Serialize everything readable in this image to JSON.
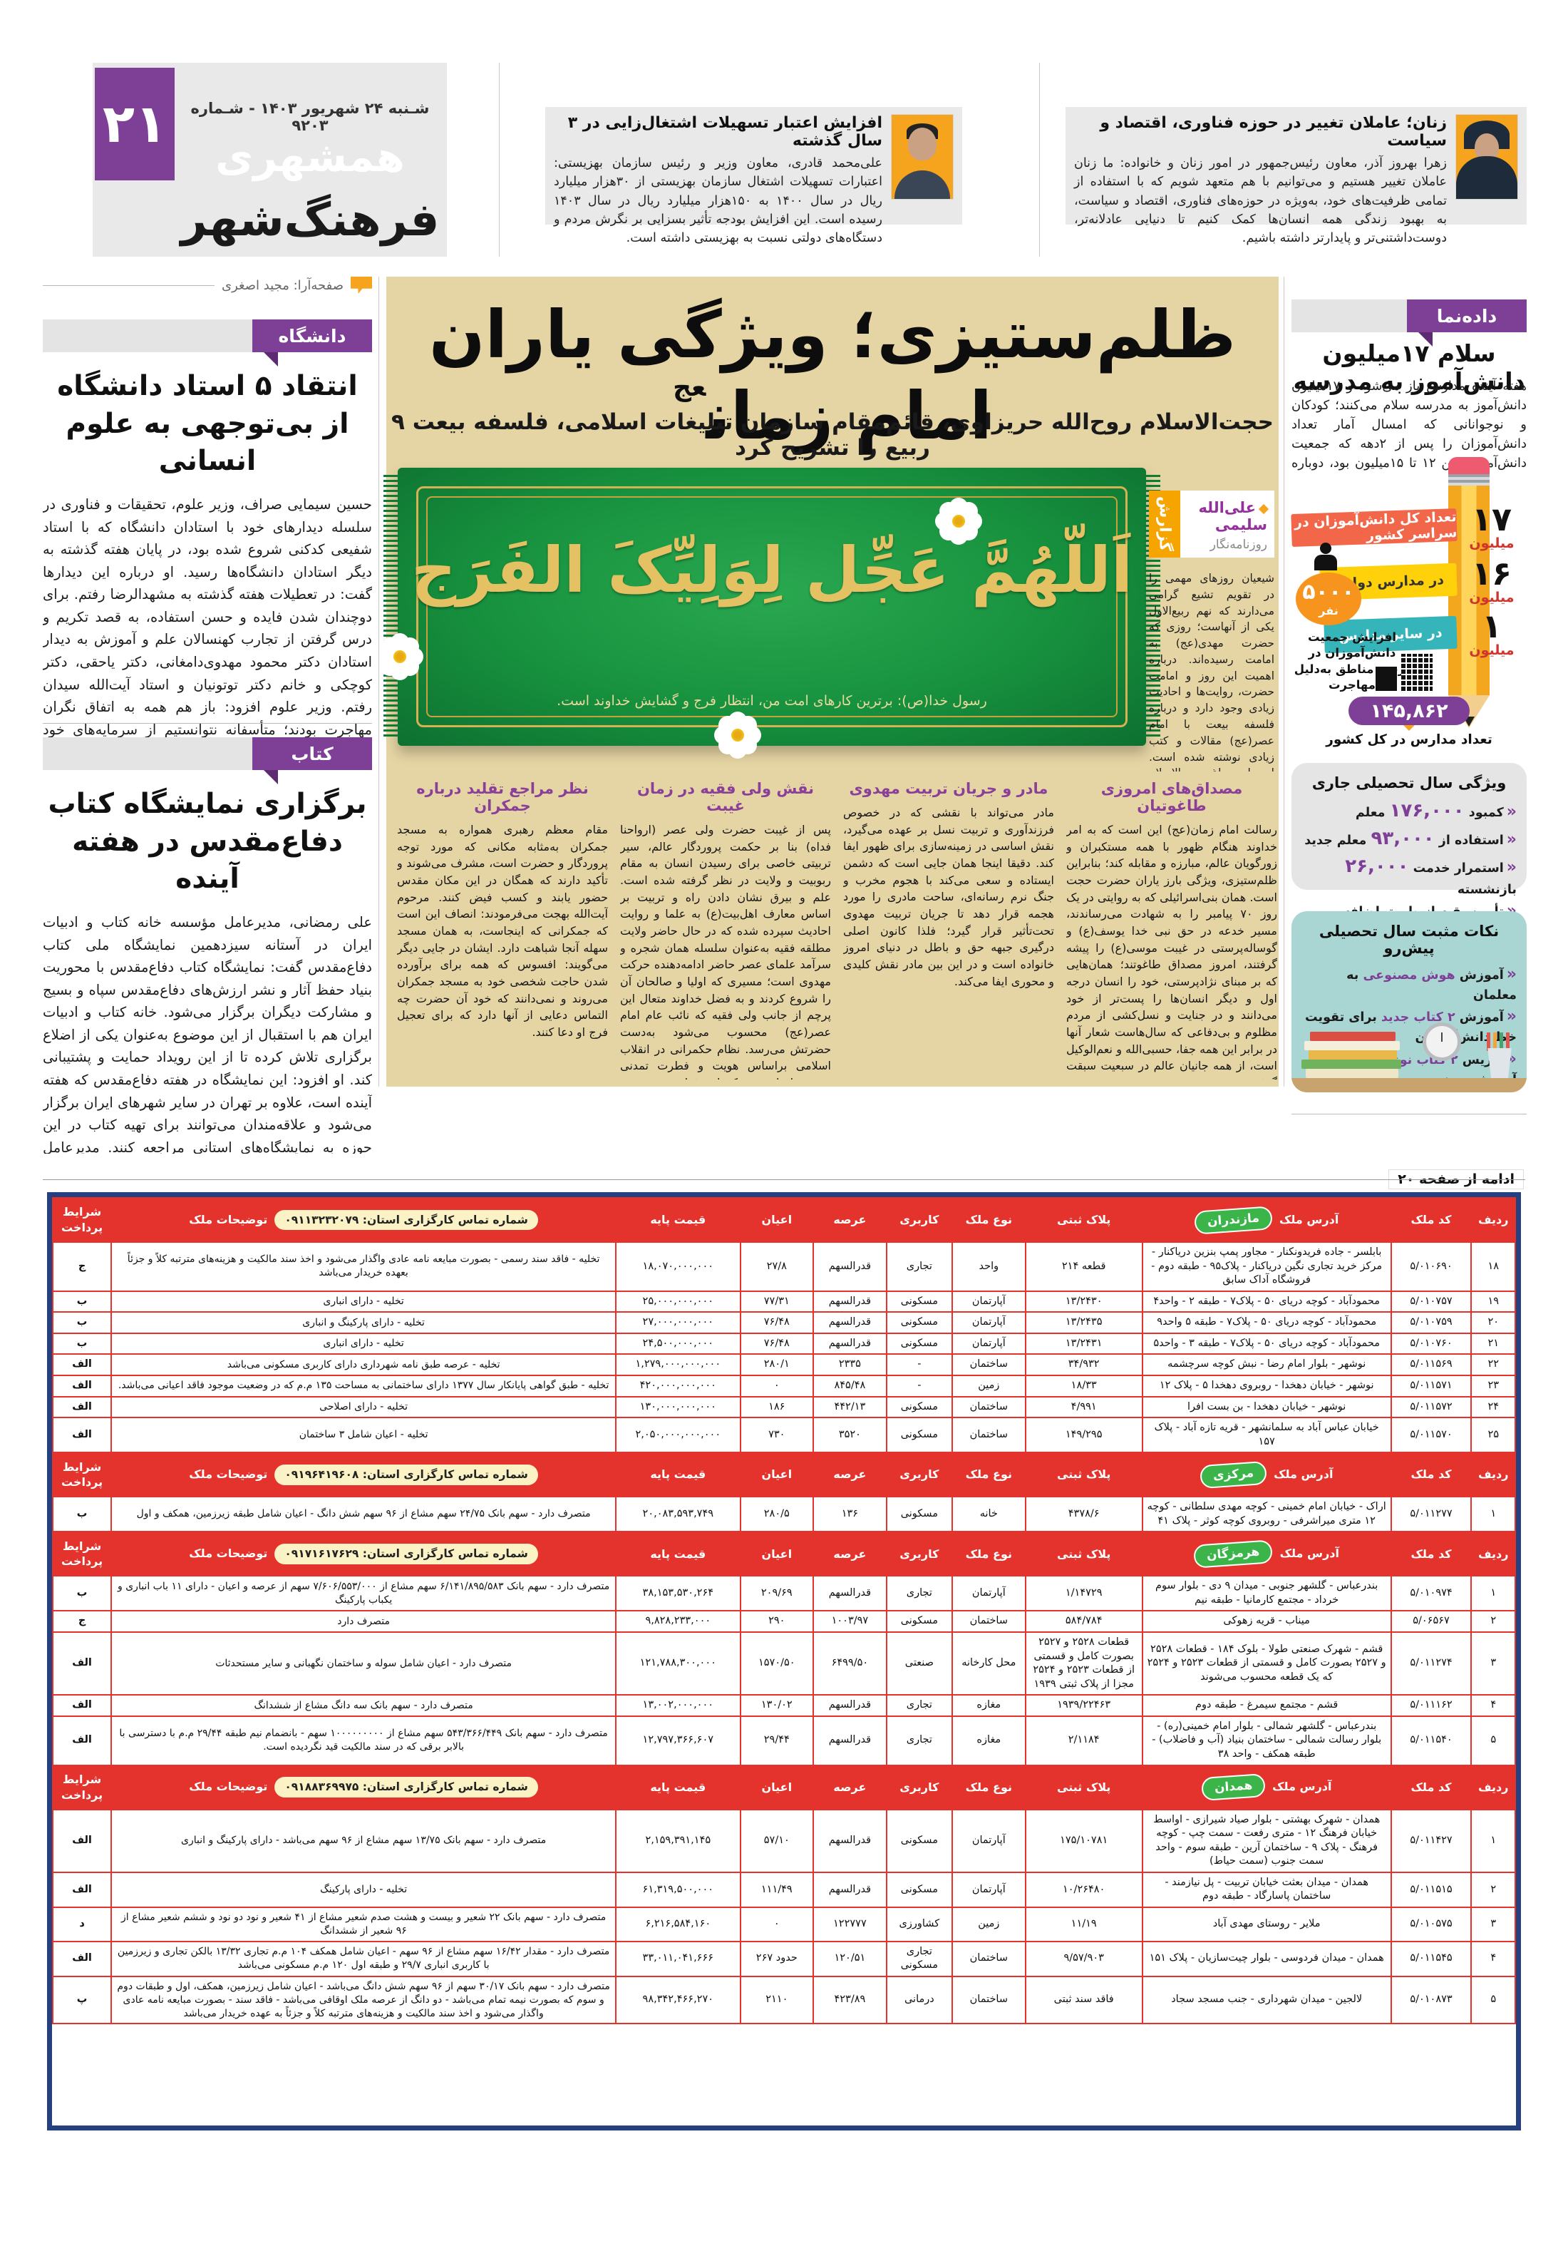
{
  "page": {
    "number": "۲۱",
    "date_line": "شـنبه ۲۴ شهریور ۱۴۰۳ - شـماره ۹۲۰۳",
    "brand": "همشهری",
    "section_logo": "فرهنگ‌شهر",
    "designer_credit": "صفحه‌آرا: مجید اصغری"
  },
  "top_articles": [
    {
      "title": "افزایش اعتبار تسهیلات اشتغال‌زایی در ۳ سال گذشته",
      "body": "علی‌محمد قادری، معاون وزیر و رئیس سازمان بهزیستی: اعتبارات تسهیلات اشتغال سازمان بهزیستی از ۳۰هزار میلیارد ریال در سال ۱۴۰۰ به ۱۵۰هزار میلیارد ریال در سال ۱۴۰۳ رسیده است. این افزایش بودجه تأثیر بسزایی بر نگرش مردم و دستگاه‌های دولتی نسبت به بهزیستی داشته است."
    },
    {
      "title": "زنان؛ عاملان تغییر در حوزه فناوری، اقتصاد و سیاست",
      "body": "زهرا بهروز آذر، معاون رئیس‌جمهور در امور زنان و خانواده: ما زنان عاملان تغییر هستیم و می‌توانیم با هم متعهد شویم که با استفاده از تمامی ظرفیت‌های خود، به‌ویژه در حوزه‌های فناوری، اقتصاد و سیاست، به بهبود زندگی همه انسان‌ها کمک کنیم تا دنیایی عادلانه‌تر، دوست‌داشتنی‌تر و پایدارتر داشته باشیم."
    }
  ],
  "left_articles": [
    {
      "tab": "دانشگاه",
      "title_l1": "انتقاد ۵ استاد دانشگاه",
      "title_l2": "از بی‌توجهی به علوم انسانی",
      "body": "حسین سیمایی صراف، وزیر علوم، تحقیقات و فناوری در سلسله دیدارهای خود با استادان دانشگاه که با استاد شفیعی کدکنی شروع شده بود، در پایان هفته گذشته به دیگر استادان دانشگاه‌ها رسید. او درباره این دیدارها گفت: در تعطیلات هفته گذشته به مشهدالرضا رفتم. برای دوچندان شدن فایده و حسن استفاده، به قصد تکریم و درس گرفتن از تجارب کهنسالان علم و آموزش به دیدار استادان دکتر محمود مهدوی‌دامغانی، دکتر یاحقی، دکتر کوچکی و خانم دکتر توتونیان و استاد آیت‌الله سیدان رفتم. وزیر علوم افزود: باز هم همه به اتفاق نگران مهاجرت بودند؛ متأسفانه نتوانستیم از سرمایه‌های خود مراقبت کنیم؛ دکتر مهدوی از روش مدیریت دانشکده و دانشگاه در دوران پیش از انقلاب گفت. خانم دکتر توتونیان درباره حفظ منابع انسانی گفت؛ با دکتر یاحقی و دکتر کوچکی درباره کم‌توجهی به علوم انسانی و علوم پایه و علل ضعف دانشگاه گفتیم و از راهکارها بحث کردیم."
    },
    {
      "tab": "کتاب",
      "title_l1": "برگزاری نمایشگاه کتاب",
      "title_l2": "دفاع‌مقدس در هفته آینده",
      "body": "علی رمضانی، مدیرعامل مؤسسه خانه کتاب و ادبیات ایران در آستانه سیزدهمین نمایشگاه ملی کتاب دفاع‌مقدس گفت: نمایشگاه کتاب دفاع‌مقدس با محوریت بنیاد حفظ آثار و نشر ارزش‌های دفاع‌مقدس سپاه و بسیج و مشارکت دیگران برگزار می‌شود. خانه کتاب و ادبیات ایران هم با استقبال از این موضوع به‌عنوان یکی از اضلاع برگزاری تلاش کرده تا از این رویداد حمایت و پشتیبانی کند. او افزود: این نمایشگاه در هفته دفاع‌مقدس که هفته آینده است، علاوه بر تهران در سایر شهرهای ایران برگزار می‌شود و علاقه‌مندان می‌توانند برای تهیه کتاب در این حوزه به نمایشگاه‌های استانی مراجعه کنند. مدیرعامل مؤسسه خانه کتاب و ادبیات ایران گفت: تمام کتاب‌های حوزه دفاع مقدس برای آشنایی بیشتر مردم با ۸سال جنگ تحمیلی در این نمایشگاه‌ها ارائه می‌شود و تلاش شده آثار جدید نیز در این حوزه منتشر و در اختیار مخاطبان قرار داده شود."
    }
  ],
  "main": {
    "headline": "ظلم‌ستیزی؛ ویژگی یاران امام زمان",
    "headline_sup": "عج",
    "subtitle": "حجت‌الاسلام روح‌الله حریزاوی، قائم‌مقام سازمان تبلیغات اسلامی، فلسفه بیعت ۹ ربیع را تشریح کرد",
    "report_tab": "گزارش",
    "byline_name": "علی‌الله سلیمی",
    "byline_role": "روزنامه‌نگار",
    "rug_calligraphy": "اَللّهُمَّ عَجِّل لِوَلِیِّکَ الفَرَج",
    "rug_caption": "رسول خدا(ص): برترین کارهای امت من، انتظار فرج و گشایش خداوند است.",
    "lead": "شیعیان روزهای مهمی را در تقویم تشیع گرامی می‌دارند که نهم ربیع‌الاول یکی از آنهاست؛ روزی که حضرت مهدی(عج) به امامت رسیده‌اند. درباره اهمیت این روز و امامت حضرت، روایت‌ها و احادیث زیادی وجود دارد و درباره فلسفه بیعت با امام عصر(عج) مقالات و کتب زیادی نوشته شده است. این بار سراغ حجت‌الاسلام روح‌الله حریزاوی، قائم‌مقام سازمان تبلیغات اسلامی رفتیم تا درباره چند موضوع مهم یعنی وظیفه یاران حضرت در برابر ظلم ظالمان عصر، نقش خانواده به‌ویژه مادران در زمان غیبت و اهمیت مسجد جمکران گفت‌وگو کنیم که چکیده آن را در زیر می‌خوانید.",
    "columns": [
      {
        "heading": "مصداق‌های امروزی طاغوتیان",
        "body": "رسالت امام زمان(عج) این است که به امر خداوند هنگام ظهور با همه مستکبران و زورگویان عالم، مبارزه و مقابله کند؛ بنابراین ظلم‌ستیزی، ویژگی بارز یاران حضرت حجت است. همان بنی‌اسرائیلی که به روایتی در یک روز ۷۰ پیامبر را به شهادت می‌رساندند، مسیر خدعه در حق نبی خدا یوسف(ع) و گوساله‌پرستی در غیبت موسی(ع) را پیشه گرفتند، امروز مصداق طاغوتند؛ همان‌هایی که بر مبنای نژادپرستی، خود را انسان درجه اول و دیگر انسان‌ها را پست‌تر از خود می‌دانند و در جنایت و نسل‌کشی از مردم مظلوم و بی‌دفاعی که سال‌هاست شعار آنها در برابر این همه جفا، حسبی‌الله و نعم‌الوکیل است، از همه جانیان عالم در سبعیت سبقت گرفتند."
      },
      {
        "heading": "مادر و جریان تربیت مهدوی",
        "body": "مادر می‌تواند با نقشی که در خصوص فرزندآوری و تربیت نسل بر عهده می‌گیرد، نقش اساسی در زمینه‌سازی برای ظهور ایفا کند. دقیقا اینجا همان جایی است که دشمن ایستاده و سعی می‌کند با هجوم مخرب و جنگ نرم رسانه‌ای، ساحت مادری را مورد هجمه قرار دهد تا جریان تربیت مهدوی تحت‌تأثیر قرار گیرد؛ فلذا کانون اصلی درگیری جبهه حق و باطل در دنیای امروز خانواده است و در این بین مادر نقش کلیدی و محوری ایفا می‌کند."
      },
      {
        "heading": "نقش ولی فقیه در زمان غیبت",
        "body": "پس از غیبت حضرت ولی عصر (ارواحنا فداه) بنا بر حکمت پروردگار عالم، سیر تربیتی خاصی برای رسیدن انسان به مقام ربوبیت و ولایت در نظر گرفته شده است. علم و بیرق نشان دادن راه و تربیت بر اساس معارف اهل‌بیت(ع) به علما و روایت احادیث سپرده شده که در حال حاضر ولایت مطلقه فقیه به‌عنوان سلسله همان شجره و سرآمد علمای عصر حاضر ادامه‌دهنده حرکت مهدوی است؛ مسیری که اولیا و صالحان آن را شروع کردند و به فضل خداوند متعال این پرچم از جانب ولی فقیه که نائب عام امام عصر(عج) محسوب می‌شود به‌دست حضرتش می‌رسد. نظام حکمرانی در انقلاب اسلامی براساس هویت و فطرت تمدنی مهدوی ایجاد شده که این فطرت مبتنی بر تمایل انسان به امر متعالی است؛ چیزی که سرآمد آرمان جامعه یکپارچه مهدوی است. اینجا وجه تمایز تمدن مهدوی و در سلسله آن جمهوری اسلامی با سایر تمدن‌ها مشخص می‌شود."
      },
      {
        "heading": "نظر مراجع تقلید درباره جمکران",
        "body": "مقام معظم رهبری همواره به مسجد جمکران به‌مثابه مکانی که مورد توجه پروردگار و حضرت است، مشرف می‌شوند و تأکید دارند که همگان در این مکان مقدس حضور یابند و کسب فیض کنند. مرحوم آیت‌الله بهجت می‌فرمودند: انصاف این است که جمکرانی که اینجاست، به همان مسجد سهله آنجا شباهت دارد. ایشان در جایی دیگر می‌گویند: افسوس که همه برای برآورده شدن حاجت شخصی خود به مسجد جمکران می‌روند و نمی‌دانند که خود آن حضرت چه التماس دعایی از آنها دارد که برای تعجیل فرج او دعا کنند."
      }
    ]
  },
  "sidebar": {
    "tab": "داده‌نما",
    "title": "سلام ۱۷میلیون دانش‌آموز به مدرسه",
    "lead": "هفته آینده مدارس باز می‌شود و ۱۷میلیون دانش‌آموز به مدرسه سلام می‌کنند؛ کودکان و نوجوانانی که امسال آمار تعداد دانش‌آموزان را پس از ۲دهه که جمعیت دانش‌آموزی بین ۱۲ تا ۱۵میلیون بود، دوباره بالا بردند و جزو پرجمعیت‌ترین نسل دانش‌آموزان در ایران شدند.",
    "infographic": {
      "ribbons": [
        {
          "value": "۱۷",
          "unit": "میلیون",
          "label": "تعداد کل دانش‌آموزان در سراسر کشور"
        },
        {
          "value": "۱۶",
          "unit": "میلیون",
          "label": "در مدارس دولتی"
        },
        {
          "value": "۱",
          "unit": "میلیون",
          "label": "در سایر مدارس"
        }
      ],
      "migration": {
        "value": "۵۰۰۰",
        "unit": "نفر",
        "caption": "افزایش جمعیت دانش‌آموزان در برخی مناطق به‌دلیل مهاجرت"
      },
      "schools": {
        "value": "۱۴۵,۸۶۲",
        "caption": "تعداد مدارس در کل کشور"
      }
    },
    "box1": {
      "title": "ویژگی سال تحصیلی جاری",
      "items": [
        {
          "pre": "کمبود",
          "num": "۱۷۶,۰۰۰",
          "post": "معلم"
        },
        {
          "pre": "استفاده از",
          "num": "۹۳,۰۰۰",
          "post": "معلم جدید"
        },
        {
          "pre": "استمرار خدمت",
          "num": "۲۶,۰۰۰",
          "post": "بازنشسته"
        },
        {
          "pre": "تأمین بقیه از طریق اضافه تدریس معلمان شاغل",
          "num": "",
          "post": ""
        }
      ]
    },
    "box2": {
      "title": "نکات مثبت سال تحصیلی پیش‌رو",
      "items": [
        {
          "pre": "آموزش",
          "em": "هوش مصنوعی",
          "post": "به معلمان"
        },
        {
          "pre": "آموزش",
          "em": "۲ کتاب جدید",
          "post": "برای تقویت خط دانش‌آموزان"
        },
        {
          "pre": "تدریس",
          "em": "۲ کتاب نونگاشت",
          "post": "آموزشی دینی در مدارس"
        }
      ]
    }
  },
  "table": {
    "continued": "ادامه از صفحه ۲۰",
    "phone_label": "شماره تماس کارگزاری استان:",
    "headers": [
      "ردیف",
      "کد ملک",
      "آدرس ملک",
      "پلاک ثبتی",
      "نوع ملک",
      "کاربری",
      "عرصه",
      "اعیان",
      "قیمت پایه",
      "توضیحات ملک",
      "شرایط پرداخت"
    ],
    "sections": [
      {
        "province": "مازندران",
        "phone": "۰۹۱۱۳۲۳۲۰۷۹",
        "rows": [
          [
            "۱۸",
            "۵/۰۱۰۶۹۰",
            "بابلسر - جاده فریدونکنار - مجاور پمپ بنزین دریاکنار - مرکز خرید تجاری نگین دریاکنار - پلاک۹۵ - طبقه دوم - فروشگاه آداک سابق",
            "قطعه ۲۱۴",
            "واحد",
            "تجاری",
            "قدرالسهم",
            "۲۷/۸",
            "۱۸,۰۷۰,۰۰۰,۰۰۰",
            "تخلیه - فاقد سند رسمی - بصورت مبایعه نامه عادی واگذار می‌شود و اخذ سند مالکیت و هزینه‌های مترتبه کلاً و جزئاً بعهده خریدار می‌باشد",
            "ج"
          ],
          [
            "۱۹",
            "۵/۰۱۰۷۵۷",
            "محمودآباد - کوچه دریای ۵۰ - پلاک۷ - طبقه ۲ - واحد۴",
            "۱۳/۲۴۳۰",
            "آپارتمان",
            "مسکونی",
            "قدرالسهم",
            "۷۷/۳۱",
            "۲۵,۰۰۰,۰۰۰,۰۰۰",
            "تخلیه - دارای انباری",
            "ب"
          ],
          [
            "۲۰",
            "۵/۰۱۰۷۵۹",
            "محمودآباد - کوچه دریای ۵۰ - پلاک۷ - طبقه ۵ واحد۹",
            "۱۳/۲۴۳۵",
            "آپارتمان",
            "مسکونی",
            "قدرالسهم",
            "۷۶/۴۸",
            "۲۷,۰۰۰,۰۰۰,۰۰۰",
            "تخلیه - دارای پارکینگ و انباری",
            "ب"
          ],
          [
            "۲۱",
            "۵/۰۱۰۷۶۰",
            "محمودآباد - کوچه دریای ۵۰ - پلاک۷ - طبقه ۳ - واحد۵",
            "۱۳/۲۴۳۱",
            "آپارتمان",
            "مسکونی",
            "قدرالسهم",
            "۷۶/۴۸",
            "۲۴,۵۰۰,۰۰۰,۰۰۰",
            "تخلیه - دارای انباری",
            "ب"
          ],
          [
            "۲۲",
            "۵/۰۱۱۵۶۹",
            "نوشهر - بلوار امام رضا - نبش کوچه سرچشمه",
            "۳۴/۹۳۲",
            "ساختمان",
            "-",
            "۲۳۳۵",
            "۲۸۰/۱",
            "۱,۲۷۹,۰۰۰,۰۰۰,۰۰۰",
            "تخلیه - عرصه طبق نامه شهرداری دارای کاربری مسکونی می‌باشد",
            "الف"
          ],
          [
            "۲۳",
            "۵/۰۱۱۵۷۱",
            "نوشهر - خیابان دهخدا - روبروی دهخدا ۵ - پلاک ۱۲",
            "۱۸/۳۳",
            "زمین",
            "-",
            "۸۴۵/۴۸",
            "۰",
            "۴۲۰,۰۰۰,۰۰۰,۰۰۰",
            "تخلیه - طبق گواهی پایانکار سال ۱۳۷۷ دارای ساختمانی به مساحت ۱۳۵ م.م که در وضعیت موجود فاقد اعیانی می‌باشد.",
            "الف"
          ],
          [
            "۲۴",
            "۵/۰۱۱۵۷۲",
            "نوشهر - خیابان دهخدا - بن بست افرا",
            "۴/۹۹۱",
            "ساختمان",
            "مسکونی",
            "۴۴۲/۱۳",
            "۱۸۶",
            "۱۳۰,۰۰۰,۰۰۰,۰۰۰",
            "تخلیه - دارای اصلاحی",
            "الف"
          ],
          [
            "۲۵",
            "۵/۰۱۱۵۷۰",
            "خیابان عباس آباد به سلمانشهر - قریه تازه آباد - پلاک ۱۵۷",
            "۱۴۹/۲۹۵",
            "ساختمان",
            "مسکونی",
            "۳۵۲۰",
            "۷۳۰",
            "۲,۰۵۰,۰۰۰,۰۰۰,۰۰۰",
            "تخلیه - اعیان شامل ۳ ساختمان",
            "الف"
          ]
        ]
      },
      {
        "province": "مرکزی",
        "phone": "۰۹۱۹۶۴۱۹۶۰۸",
        "rows": [
          [
            "۱",
            "۵/۰۱۱۲۷۷",
            "اراک - خیابان امام خمینی - کوچه مهدی سلطانی - کوچه ۱۲ متری میراشرفی - روبروی کوچه کوثر - پلاک ۴۱",
            "۴۳۷۸/۶",
            "خانه",
            "مسکونی",
            "۱۳۶",
            "۲۸۰/۵",
            "۲۰,۰۸۳,۵۹۳,۷۴۹",
            "متصرف دارد - سهم بانک ۲۴/۷۵ سهم مشاع از ۹۶ سهم شش دانگ - اعیان شامل طبقه زیرزمین، همکف و اول",
            "ب"
          ]
        ]
      },
      {
        "province": "هرمزگان",
        "phone": "۰۹۱۷۱۶۱۷۶۲۹",
        "rows": [
          [
            "۱",
            "۵/۰۱۰۹۷۴",
            "بندرعباس - گلشهر جنوبی - میدان ۹ دی - بلوار سوم خرداد - مجتمع کارمانیا - طبقه نیم",
            "۱/۱۴۷۲۹",
            "آپارتمان",
            "تجاری",
            "قدرالسهم",
            "۲۰۹/۶۹",
            "۳۸,۱۵۳,۵۳۰,۲۶۴",
            "متصرف دارد - سهم بانک ۶/۱۴۱/۸۹۵/۵۸۳ سهم مشاع از ۷/۶۰۶/۵۵۳/۰۰۰ سهم از عرصه و اعیان - دارای ۱۱ باب انباری و یکباب پارکینگ",
            "ب"
          ],
          [
            "۲",
            "۵/۰۶۵۶۷",
            "میناب - قریه زهوکی",
            "۵۸۴/۷۸۴",
            "ساختمان",
            "مسکونی",
            "۱۰۰۳/۹۷",
            "۲۹۰",
            "۹,۸۲۸,۲۳۳,۰۰۰",
            "متصرف دارد",
            "ج"
          ],
          [
            "۳",
            "۵/۰۱۱۲۷۴",
            "قشم - شهرک صنعتی طولا - بلوک ۱۸۴ - قطعات ۲۵۲۸ و ۲۵۲۷ بصورت کامل و قسمتی از قطعات ۲۵۲۳ و ۲۵۲۴ که یک قطعه محسوب می‌شوند",
            "قطعات ۲۵۲۸ و ۲۵۲۷ بصورت کامل و قسمتی از قطعات ۲۵۲۳ و ۲۵۲۴ مجزا از پلاک ثبتی ۱۹۳۹",
            "محل کارخانه",
            "صنعتی",
            "۶۴۹۹/۵۰",
            "۱۵۷۰/۵۰",
            "۱۲۱,۷۸۸,۳۰۰,۰۰۰",
            "متصرف دارد - اعیان شامل سوله و ساختمان نگهبانی و سایر مستحدثات",
            "الف"
          ],
          [
            "۴",
            "۵/۰۱۱۱۶۲",
            "قشم - مجتمع سیمرغ - طبقه دوم",
            "۱۹۳۹/۲۲۴۶۳",
            "مغازه",
            "تجاری",
            "قدرالسهم",
            "۱۳۰/۰۲",
            "۱۳,۰۰۲,۰۰۰,۰۰۰",
            "متصرف دارد - سهم بانک سه دانگ مشاع از ششدانگ",
            "الف"
          ],
          [
            "۵",
            "۵/۰۱۱۵۴۰",
            "بندرعباس - گلشهر شمالی - بلوار امام خمینی(ره) - بلوار رسالت شمالی - ساختمان بنیاد (آب و فاضلاب) - طبقه همکف - واحد ۳۸",
            "۲/۱۱۸۴",
            "مغازه",
            "تجاری",
            "قدرالسهم",
            "۲۹/۴۴",
            "۱۲,۷۹۷,۳۶۶,۶۰۷",
            "متصرف دارد - سهم بانک ۵۴۳/۳۶۶/۴۴۹ سهم مشاع از ۱۰۰۰۰۰۰۰۰۰ سهم - بانضمام نیم طبقه ۲۹/۴۴ م.م با دسترسی با بالابر برقی که در سند مالکیت قید نگردیده است.",
            "الف"
          ]
        ]
      },
      {
        "province": "همدان",
        "phone": "۰۹۱۸۸۳۶۹۹۷۵",
        "rows": [
          [
            "۱",
            "۵/۰۱۱۴۲۷",
            "همدان - شهرک بهشتی - بلوار صیاد شیرازی - اواسط خیابان فرهنگ ۱۲ - متری رفعت - سمت چپ - کوچه فرهنگ - پلاک ۹ - ساختمان آرین - طبقه سوم - واحد سمت جنوب (سمت حیاط)",
            "۱۷۵/۱۰۷۸۱",
            "آپارتمان",
            "مسکونی",
            "قدرالسهم",
            "۵۷/۱۰",
            "۲,۱۵۹,۳۹۱,۱۴۵",
            "متصرف دارد - سهم بانک ۱۳/۷۵ سهم مشاع از ۹۶ سهم می‌باشد - دارای پارکینگ و انباری",
            "الف"
          ],
          [
            "۲",
            "۵/۰۱۱۵۱۵",
            "همدان - میدان بعثت خیابان تربیت - پل نیازمند - ساختمان پاسارگاد - طبقه دوم",
            "۱۰/۲۶۴۸۰",
            "آپارتمان",
            "مسکونی",
            "قدرالسهم",
            "۱۱۱/۴۹",
            "۶۱,۳۱۹,۵۰۰,۰۰۰",
            "تخلیه - دارای پارکینگ",
            "الف"
          ],
          [
            "۳",
            "۵/۰۱۰۵۷۵",
            "ملایر - روستای مهدی آباد",
            "۱۱/۱۹",
            "زمین",
            "کشاورزی",
            "۱۲۲۷۷۷",
            "۰",
            "۶,۲۱۶,۵۸۴,۱۶۰",
            "متصرف دارد - سهم بانک ۲۲ شعیر و بیست و هشت صدم شعیر مشاع از ۴۱ شعیر و نود دو نود و ششم شعیر مشاع از ۹۶ شعیر از ششدانگ",
            "د"
          ],
          [
            "۴",
            "۵/۰۱۱۵۴۵",
            "همدان - میدان فردوسی - بلوار چیت‌سازیان - پلاک ۱۵۱",
            "۹/۵۷/۹۰۳",
            "ساختمان",
            "تجاری مسکونی",
            "۱۲۰/۵۱",
            "حدود ۲۶۷",
            "۳۳,۰۱۱,۰۴۱,۶۶۶",
            "متصرف دارد - مقدار ۱۶/۴۲ سهم مشاع از ۹۶ سهم - اعیان شامل همکف ۱۰۴ م.م تجاری ۱۳/۳۲ بالکن تجاری و زیرزمین با کاربری انباری ۲۹/۷ و طبقه اول ۱۲۰ م.م مسکونی می‌باشد",
            "الف"
          ],
          [
            "۵",
            "۵/۰۱۰۸۷۳",
            "لالجین - میدان شهرداری - جنب مسجد سجاد",
            "فاقد سند ثبتی",
            "ساختمان",
            "درمانی",
            "۴۲۳/۸۹",
            "۲۱۱۰",
            "۹۸,۳۴۲,۴۶۶,۲۷۰",
            "متصرف دارد - سهم بانک ۳۰/۱۷ سهم از ۹۶ سهم شش دانگ می‌باشد - اعیان شامل زیرزمین، همکف، اول و طبقات دوم و سوم که بصورت نیمه تمام می‌باشد - دو دانگ از عرصه ملک اوقافی می‌باشد - فاقد سند - بصورت مبایعه نامه عادی واگذار می‌شود و اخذ سند مالکیت و هزینه‌های مترتبه کلاً و جزئاً به عهده خریدار می‌باشد",
            "پ"
          ]
        ]
      }
    ]
  }
}
